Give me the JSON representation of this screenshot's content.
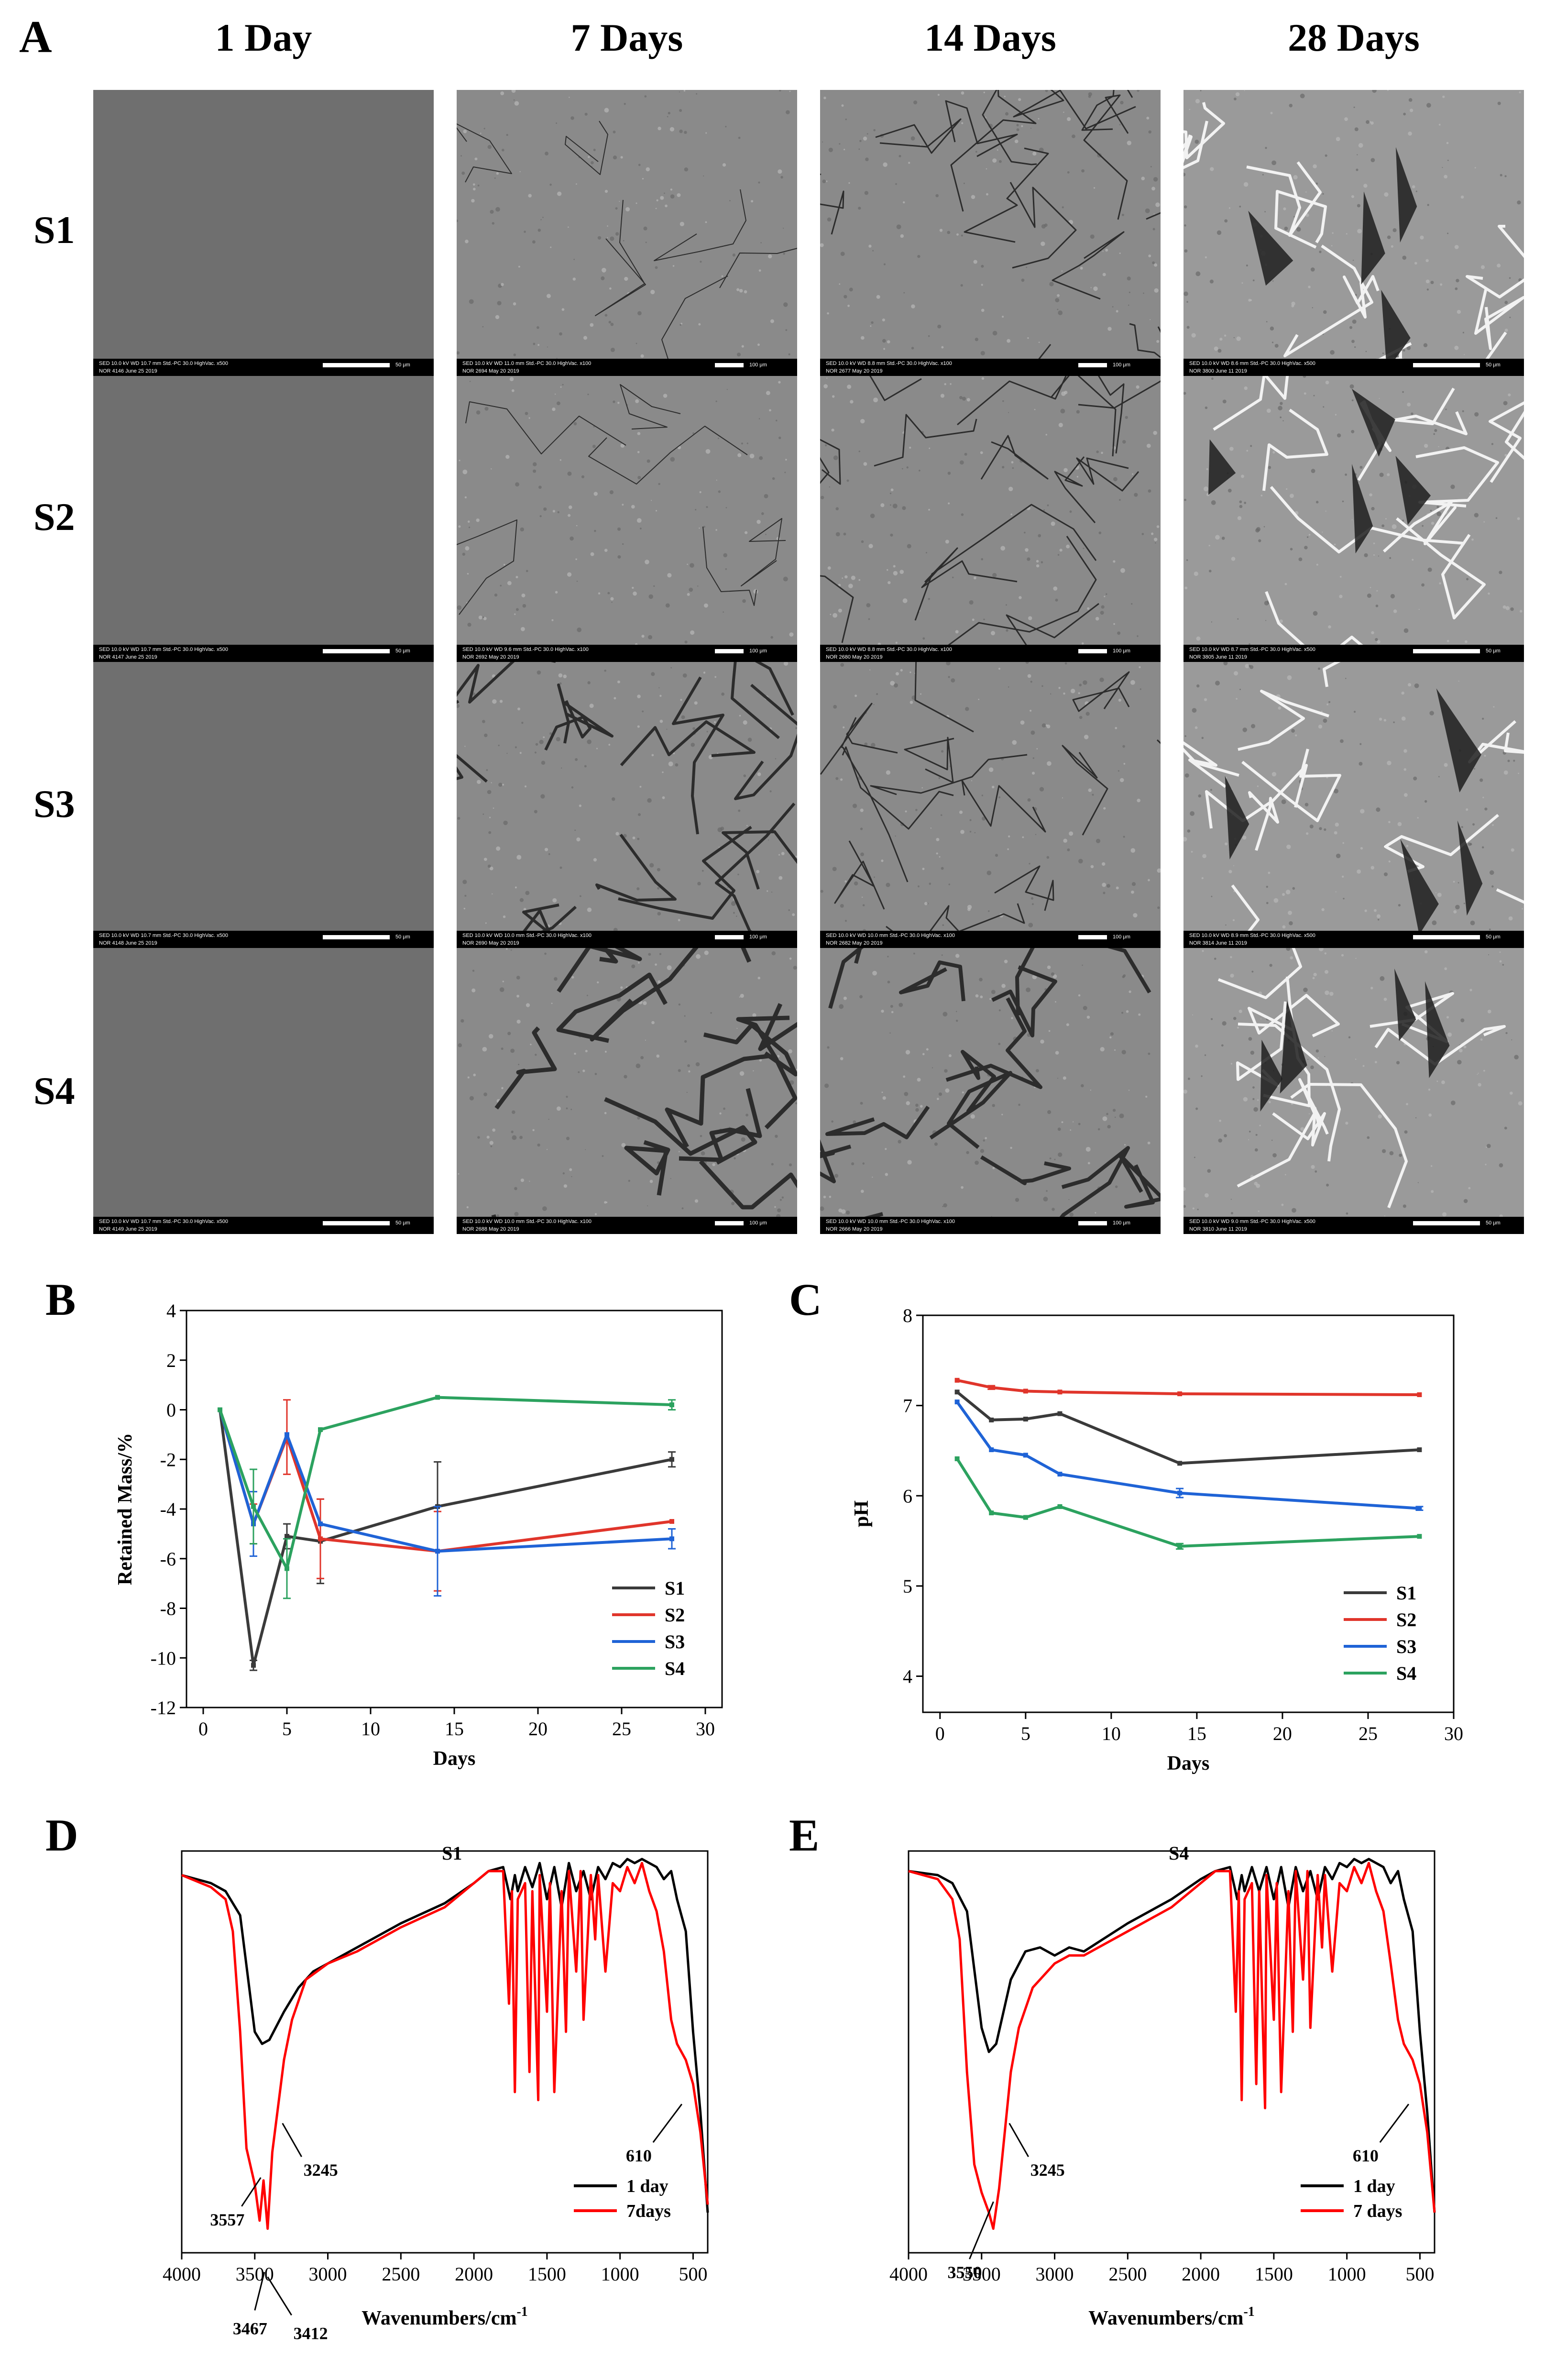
{
  "panels": {
    "A": "A",
    "B": "B",
    "C": "C",
    "D": "D",
    "E": "E"
  },
  "sem": {
    "columns": [
      "1 Day",
      "7 Days",
      "14 Days",
      "28 Days"
    ],
    "rows": [
      "S1",
      "S2",
      "S3",
      "S4"
    ],
    "images": [
      [
        {
          "line1": "SED   10.0 kV   WD 10.7 mm   Std.-PC 30.0   HighVac.   x500",
          "line2": "NOR   4146   June 25 2019",
          "scale": "50 μm"
        },
        {
          "line1": "SED   10.0 kV   WD 11.0 mm   Std.-PC 30.0   HighVac.   x100",
          "line2": "NOR   2694   May 20 2019",
          "scale": "100 μm"
        },
        {
          "line1": "SED   10.0 kV   WD 8.8 mm   Std.-PC 30.0   HighVac.   x100",
          "line2": "NOR   2677   May 20 2019",
          "scale": "100 μm"
        },
        {
          "line1": "SED   10.0 kV   WD 8.6 mm   Std.-PC 30.0   HighVac.   x500",
          "line2": "NOR   3800   June 11 2019",
          "scale": "50 μm"
        }
      ],
      [
        {
          "line1": "SED   10.0 kV   WD 10.7 mm   Std.-PC 30.0   HighVac.   x500",
          "line2": "NOR   4147   June 25 2019",
          "scale": "50 μm"
        },
        {
          "line1": "SED   10.0 kV   WD 9.6 mm   Std.-PC 30.0   HighVac.   x100",
          "line2": "NOR   2692   May 20 2019",
          "scale": "100 μm"
        },
        {
          "line1": "SED   10.0 kV   WD 8.8 mm   Std.-PC 30.0   HighVac.   x100",
          "line2": "NOR   2680   May 20 2019",
          "scale": "100 μm"
        },
        {
          "line1": "SED   10.0 kV   WD 8.7 mm   Std.-PC 30.0   HighVac.   x500",
          "line2": "NOR   3805   June 11 2019",
          "scale": "50 μm"
        }
      ],
      [
        {
          "line1": "SED   10.0 kV   WD 10.7 mm   Std.-PC 30.0   HighVac.   x500",
          "line2": "NOR   4148   June 25 2019",
          "scale": "50 μm"
        },
        {
          "line1": "SED   10.0 kV   WD 10.0 mm   Std.-PC 30.0   HighVac.   x100",
          "line2": "NOR   2690   May 20 2019",
          "scale": "100 μm"
        },
        {
          "line1": "SED   10.0 kV   WD 10.0 mm   Std.-PC 30.0   HighVac.   x100",
          "line2": "NOR   2682   May 20 2019",
          "scale": "100 μm"
        },
        {
          "line1": "SED   10.0 kV   WD 8.9 mm   Std.-PC 30.0   HighVac.   x500",
          "line2": "NOR   3814   June 11 2019",
          "scale": "50 μm"
        }
      ],
      [
        {
          "line1": "SED   10.0 kV   WD 10.7 mm   Std.-PC 30.0   HighVac.   x500",
          "line2": "NOR   4149   June 25 2019",
          "scale": "50 μm"
        },
        {
          "line1": "SED   10.0 kV   WD 10.0 mm   Std.-PC 30.0   HighVac.   x100",
          "line2": "NOR   2688   May 20 2019",
          "scale": "100 μm"
        },
        {
          "line1": "SED   10.0 kV   WD 10.0 mm   Std.-PC 30.0   HighVac.   x100",
          "line2": "NOR   2666   May 20 2019",
          "scale": "100 μm"
        },
        {
          "line1": "SED   10.0 kV   WD 9.0 mm   Std.-PC 30.0   HighVac.   x500",
          "line2": "NOR   3810   June 11 2019",
          "scale": "50 μm"
        }
      ]
    ]
  },
  "colors": {
    "S1": "#3a3a3a",
    "S2": "#e0352b",
    "S3": "#1f63d6",
    "S4": "#2ca25f",
    "day1": "#000000",
    "day7": "#ff0000"
  },
  "chart_data": [
    {
      "panel": "B",
      "type": "line",
      "xlabel": "Days",
      "ylabel": "Retained Mass/%",
      "xlim": [
        -1,
        31
      ],
      "ylim": [
        -12,
        4
      ],
      "xticks": [
        0,
        5,
        10,
        15,
        20,
        25,
        30
      ],
      "yticks": [
        -12,
        -10,
        -8,
        -6,
        -4,
        -2,
        0,
        2,
        4
      ],
      "legend_position": "bottom-right",
      "series": [
        {
          "name": "S1",
          "color": "#3a3a3a",
          "x": [
            1,
            3,
            5,
            7,
            14,
            28
          ],
          "y": [
            0,
            -10.3,
            -5.1,
            -5.3,
            -3.9,
            -2.0
          ],
          "err": [
            0,
            0.2,
            0.5,
            1.7,
            1.8,
            0.3
          ]
        },
        {
          "name": "S2",
          "color": "#e0352b",
          "x": [
            1,
            3,
            5,
            7,
            14,
            28
          ],
          "y": [
            0,
            -4.6,
            -1.1,
            -5.2,
            -5.7,
            -4.5
          ],
          "err": [
            0,
            0.8,
            1.5,
            1.6,
            1.6,
            0
          ]
        },
        {
          "name": "S3",
          "color": "#1f63d6",
          "x": [
            1,
            3,
            5,
            7,
            14,
            28
          ],
          "y": [
            0,
            -4.6,
            -1.0,
            -4.6,
            -5.7,
            -5.2
          ],
          "err": [
            0,
            1.3,
            0,
            0,
            1.8,
            0.4
          ]
        },
        {
          "name": "S4",
          "color": "#2ca25f",
          "x": [
            1,
            3,
            5,
            7,
            14,
            28
          ],
          "y": [
            0,
            -3.9,
            -6.4,
            -0.8,
            0.5,
            0.2
          ],
          "err": [
            0,
            1.5,
            1.2,
            0,
            0,
            0.2
          ]
        }
      ]
    },
    {
      "panel": "C",
      "type": "line",
      "xlabel": "Days",
      "ylabel": "pH",
      "xlim": [
        -1,
        30
      ],
      "ylim": [
        3.6,
        8
      ],
      "xticks": [
        0,
        5,
        10,
        15,
        20,
        25,
        30
      ],
      "yticks": [
        4,
        5,
        6,
        7,
        8
      ],
      "legend_position": "bottom-right",
      "series": [
        {
          "name": "S1",
          "color": "#3a3a3a",
          "x": [
            1,
            3,
            5,
            7,
            14,
            28
          ],
          "y": [
            7.15,
            6.84,
            6.85,
            6.91,
            6.36,
            6.51
          ],
          "err": [
            0,
            0,
            0,
            0,
            0,
            0
          ]
        },
        {
          "name": "S2",
          "color": "#e0352b",
          "x": [
            1,
            3,
            5,
            7,
            14,
            28
          ],
          "y": [
            7.28,
            7.2,
            7.16,
            7.15,
            7.13,
            7.12
          ],
          "err": [
            0,
            0.02,
            0,
            0,
            0,
            0
          ]
        },
        {
          "name": "S3",
          "color": "#1f63d6",
          "x": [
            1,
            3,
            5,
            7,
            14,
            28
          ],
          "y": [
            7.04,
            6.51,
            6.45,
            6.24,
            6.03,
            5.86
          ],
          "err": [
            0,
            0,
            0,
            0,
            0.05,
            0.02
          ]
        },
        {
          "name": "S4",
          "color": "#2ca25f",
          "x": [
            1,
            3,
            5,
            7,
            14,
            28
          ],
          "y": [
            6.41,
            5.81,
            5.76,
            5.88,
            5.44,
            5.55
          ],
          "err": [
            0,
            0,
            0,
            0,
            0.03,
            0
          ]
        }
      ]
    },
    {
      "panel": "D",
      "type": "line",
      "title": "S1",
      "xlabel": "Wavenumbers/cm",
      "xlabel_sup": "-1",
      "xlim": [
        4000,
        400
      ],
      "ylim": [
        0,
        1
      ],
      "xticks": [
        4000,
        3500,
        3000,
        2500,
        2000,
        1500,
        1000,
        500
      ],
      "legend_position": "bottom-right",
      "annotations": [
        {
          "text": "3557",
          "x": 3557,
          "y": 0.08
        },
        {
          "text": "3467",
          "x": 3467,
          "y": -0.06
        },
        {
          "text": "3412",
          "x": 3412,
          "y": -0.06
        },
        {
          "text": "3245",
          "x": 3245,
          "y": 0.12
        },
        {
          "text": "610",
          "x": 610,
          "y": 0.12
        }
      ],
      "series": [
        {
          "name": "1 day",
          "color": "#000000",
          "x": [
            4000,
            3800,
            3700,
            3600,
            3500,
            3450,
            3400,
            3300,
            3200,
            3100,
            3000,
            2800,
            2500,
            2200,
            2000,
            1900,
            1800,
            1750,
            1720,
            1700,
            1650,
            1600,
            1550,
            1500,
            1450,
            1400,
            1350,
            1300,
            1250,
            1200,
            1150,
            1100,
            1050,
            1000,
            950,
            900,
            850,
            800,
            750,
            700,
            650,
            610,
            550,
            500,
            450,
            400
          ],
          "y": [
            0.94,
            0.92,
            0.9,
            0.84,
            0.55,
            0.52,
            0.53,
            0.6,
            0.66,
            0.7,
            0.72,
            0.76,
            0.82,
            0.87,
            0.92,
            0.95,
            0.96,
            0.88,
            0.94,
            0.9,
            0.96,
            0.91,
            0.97,
            0.88,
            0.96,
            0.86,
            0.97,
            0.9,
            0.95,
            0.88,
            0.96,
            0.93,
            0.97,
            0.96,
            0.98,
            0.97,
            0.98,
            0.97,
            0.96,
            0.93,
            0.95,
            0.88,
            0.8,
            0.55,
            0.35,
            0.1
          ]
        },
        {
          "name": "7days",
          "color": "#ff0000",
          "x": [
            4000,
            3800,
            3700,
            3650,
            3600,
            3557,
            3500,
            3467,
            3440,
            3412,
            3380,
            3300,
            3245,
            3150,
            3000,
            2800,
            2500,
            2200,
            2000,
            1900,
            1800,
            1760,
            1740,
            1720,
            1700,
            1650,
            1620,
            1600,
            1560,
            1550,
            1500,
            1480,
            1450,
            1400,
            1370,
            1350,
            1300,
            1270,
            1250,
            1200,
            1170,
            1150,
            1100,
            1050,
            1000,
            950,
            900,
            850,
            800,
            750,
            700,
            650,
            610,
            550,
            500,
            450,
            400
          ],
          "y": [
            0.94,
            0.91,
            0.88,
            0.8,
            0.55,
            0.26,
            0.17,
            0.08,
            0.18,
            0.06,
            0.25,
            0.48,
            0.58,
            0.68,
            0.72,
            0.75,
            0.81,
            0.86,
            0.92,
            0.95,
            0.95,
            0.62,
            0.9,
            0.4,
            0.88,
            0.92,
            0.45,
            0.9,
            0.38,
            0.94,
            0.6,
            0.92,
            0.4,
            0.9,
            0.55,
            0.95,
            0.7,
            0.95,
            0.58,
            0.94,
            0.78,
            0.94,
            0.7,
            0.92,
            0.9,
            0.96,
            0.92,
            0.97,
            0.9,
            0.85,
            0.75,
            0.58,
            0.52,
            0.48,
            0.42,
            0.3,
            0.12
          ]
        }
      ]
    },
    {
      "panel": "E",
      "type": "line",
      "title": "S4",
      "xlabel": "Wavenumbers/cm",
      "xlabel_sup": "-1",
      "xlim": [
        4000,
        400
      ],
      "ylim": [
        0,
        1
      ],
      "xticks": [
        4000,
        3500,
        3000,
        2500,
        2000,
        1500,
        1000,
        500
      ],
      "legend_position": "bottom-right",
      "annotations": [
        {
          "text": "3550",
          "x": 3550,
          "y": 0.02
        },
        {
          "text": "3245",
          "x": 3245,
          "y": 0.12
        },
        {
          "text": "610",
          "x": 610,
          "y": 0.12
        }
      ],
      "series": [
        {
          "name": "1 day",
          "color": "#000000",
          "x": [
            4000,
            3800,
            3700,
            3600,
            3500,
            3450,
            3400,
            3300,
            3200,
            3100,
            3000,
            2900,
            2800,
            2500,
            2200,
            2000,
            1900,
            1800,
            1750,
            1720,
            1700,
            1650,
            1600,
            1550,
            1500,
            1450,
            1400,
            1350,
            1300,
            1250,
            1200,
            1150,
            1100,
            1050,
            1000,
            950,
            900,
            850,
            800,
            750,
            700,
            650,
            610,
            550,
            500,
            450,
            400
          ],
          "y": [
            0.95,
            0.94,
            0.92,
            0.85,
            0.56,
            0.5,
            0.52,
            0.68,
            0.75,
            0.76,
            0.74,
            0.76,
            0.75,
            0.82,
            0.88,
            0.93,
            0.95,
            0.96,
            0.88,
            0.94,
            0.9,
            0.96,
            0.9,
            0.96,
            0.88,
            0.96,
            0.86,
            0.96,
            0.9,
            0.95,
            0.88,
            0.96,
            0.93,
            0.97,
            0.96,
            0.98,
            0.97,
            0.98,
            0.97,
            0.96,
            0.92,
            0.95,
            0.88,
            0.8,
            0.55,
            0.35,
            0.1
          ]
        },
        {
          "name": "7 days",
          "color": "#ff0000",
          "x": [
            4000,
            3800,
            3700,
            3650,
            3600,
            3550,
            3500,
            3450,
            3420,
            3380,
            3300,
            3245,
            3150,
            3000,
            2900,
            2800,
            2500,
            2200,
            2000,
            1900,
            1800,
            1760,
            1740,
            1720,
            1700,
            1650,
            1620,
            1600,
            1560,
            1550,
            1500,
            1480,
            1450,
            1400,
            1370,
            1350,
            1300,
            1270,
            1250,
            1200,
            1170,
            1150,
            1100,
            1050,
            1000,
            950,
            900,
            850,
            800,
            750,
            700,
            650,
            610,
            550,
            500,
            450,
            400
          ],
          "y": [
            0.95,
            0.93,
            0.88,
            0.78,
            0.45,
            0.22,
            0.15,
            0.1,
            0.06,
            0.16,
            0.45,
            0.56,
            0.66,
            0.72,
            0.74,
            0.74,
            0.8,
            0.86,
            0.92,
            0.95,
            0.95,
            0.6,
            0.9,
            0.38,
            0.88,
            0.92,
            0.42,
            0.9,
            0.36,
            0.94,
            0.58,
            0.92,
            0.4,
            0.9,
            0.55,
            0.95,
            0.68,
            0.95,
            0.56,
            0.94,
            0.76,
            0.94,
            0.7,
            0.92,
            0.9,
            0.96,
            0.92,
            0.97,
            0.9,
            0.85,
            0.72,
            0.58,
            0.52,
            0.48,
            0.42,
            0.3,
            0.1
          ]
        }
      ]
    }
  ]
}
